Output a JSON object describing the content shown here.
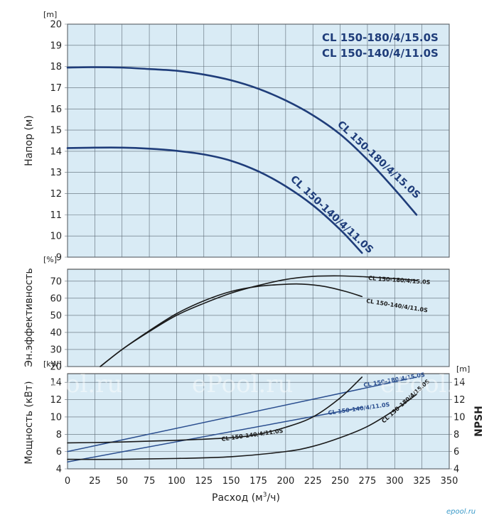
{
  "colors": {
    "plot_bg": "#d9ebf5",
    "grid": "#5c6a75",
    "navy": "#1f3d7a",
    "black": "#1a1a1a",
    "blue": "#2a4e8f"
  },
  "x_axis": {
    "label_text": "Расход (м",
    "label_sup": "3",
    "label_end": "/ч)",
    "ticks": [
      0,
      25,
      50,
      75,
      100,
      125,
      150,
      175,
      200,
      225,
      250,
      275,
      300,
      325,
      350
    ]
  },
  "legend": [
    "CL 150-180/4/15.0S",
    "CL 150-140/4/11.0S"
  ],
  "watermark": "ePool.ru",
  "logo": "epool.ru",
  "chart_data": [
    {
      "type": "line",
      "title": "",
      "ylabel": "Напор (м)",
      "yunit": "[m]",
      "xlim": [
        0,
        350
      ],
      "ylim": [
        9,
        20
      ],
      "yticks": [
        9,
        10,
        11,
        12,
        13,
        14,
        15,
        16,
        17,
        18,
        19,
        20
      ],
      "series": [
        {
          "name": "CL 150-180/4/15.0S",
          "x": [
            0,
            25,
            50,
            75,
            100,
            125,
            150,
            175,
            200,
            225,
            250,
            275,
            300,
            320
          ],
          "y": [
            17.95,
            17.97,
            17.95,
            17.88,
            17.8,
            17.62,
            17.35,
            16.95,
            16.4,
            15.7,
            14.8,
            13.6,
            12.2,
            11.0
          ]
        },
        {
          "name": "CL 150-140/4/11.0S",
          "x": [
            0,
            25,
            50,
            75,
            100,
            125,
            150,
            175,
            200,
            225,
            250,
            270
          ],
          "y": [
            14.15,
            14.17,
            14.17,
            14.12,
            14.02,
            13.85,
            13.55,
            13.05,
            12.35,
            11.45,
            10.3,
            9.2
          ]
        }
      ]
    },
    {
      "type": "line",
      "title": "",
      "ylabel": "Эн.эффективность",
      "yunit": "[%]",
      "xlim": [
        0,
        350
      ],
      "ylim": [
        20,
        77
      ],
      "yticks": [
        20,
        30,
        40,
        50,
        60,
        70
      ],
      "series": [
        {
          "name": "CL 150-180/4/15.0S",
          "x": [
            30,
            50,
            75,
            100,
            125,
            150,
            175,
            200,
            225,
            250,
            275,
            300,
            320
          ],
          "y": [
            20,
            30,
            40.5,
            50,
            57,
            63,
            67.5,
            71,
            72.8,
            73.1,
            72.5,
            71.5,
            70.5
          ]
        },
        {
          "name": "CL 150-140/4/11.0S",
          "x": [
            30,
            50,
            75,
            100,
            125,
            150,
            175,
            200,
            215,
            235,
            255,
            270
          ],
          "y": [
            20,
            30,
            41,
            51,
            58.5,
            64,
            67,
            68.2,
            68.3,
            67,
            64,
            61
          ]
        }
      ]
    },
    {
      "type": "line",
      "title": "",
      "ylabel": "Мощность (кВт)",
      "yunit": "[kW]",
      "y2label": "NPSH",
      "y2unit": "[m]",
      "xlim": [
        0,
        350
      ],
      "ylim": [
        4,
        15
      ],
      "yticks": [
        4,
        6,
        8,
        10,
        12,
        14
      ],
      "series": [
        {
          "name": "CL 150-180/4/15.0S",
          "x": [
            0,
            320
          ],
          "y": [
            6.0,
            14.6
          ]
        },
        {
          "name": "CL 150-140/4/11.0S",
          "x": [
            0,
            270
          ],
          "y": [
            4.8,
            11.1
          ]
        },
        {
          "name": "CL 150-140/4/11.0S",
          "x": [
            0,
            50,
            100,
            150,
            175,
            200,
            225,
            250,
            270
          ],
          "y": [
            7.0,
            7.1,
            7.3,
            7.6,
            8.0,
            8.8,
            10.0,
            12.2,
            14.6
          ]
        },
        {
          "name": "CL 150-180/4/15.0S",
          "x": [
            0,
            50,
            100,
            150,
            200,
            225,
            250,
            275,
            300,
            320
          ],
          "y": [
            5.1,
            5.1,
            5.2,
            5.4,
            6.0,
            6.6,
            7.6,
            8.9,
            10.8,
            12.6
          ]
        }
      ]
    }
  ]
}
